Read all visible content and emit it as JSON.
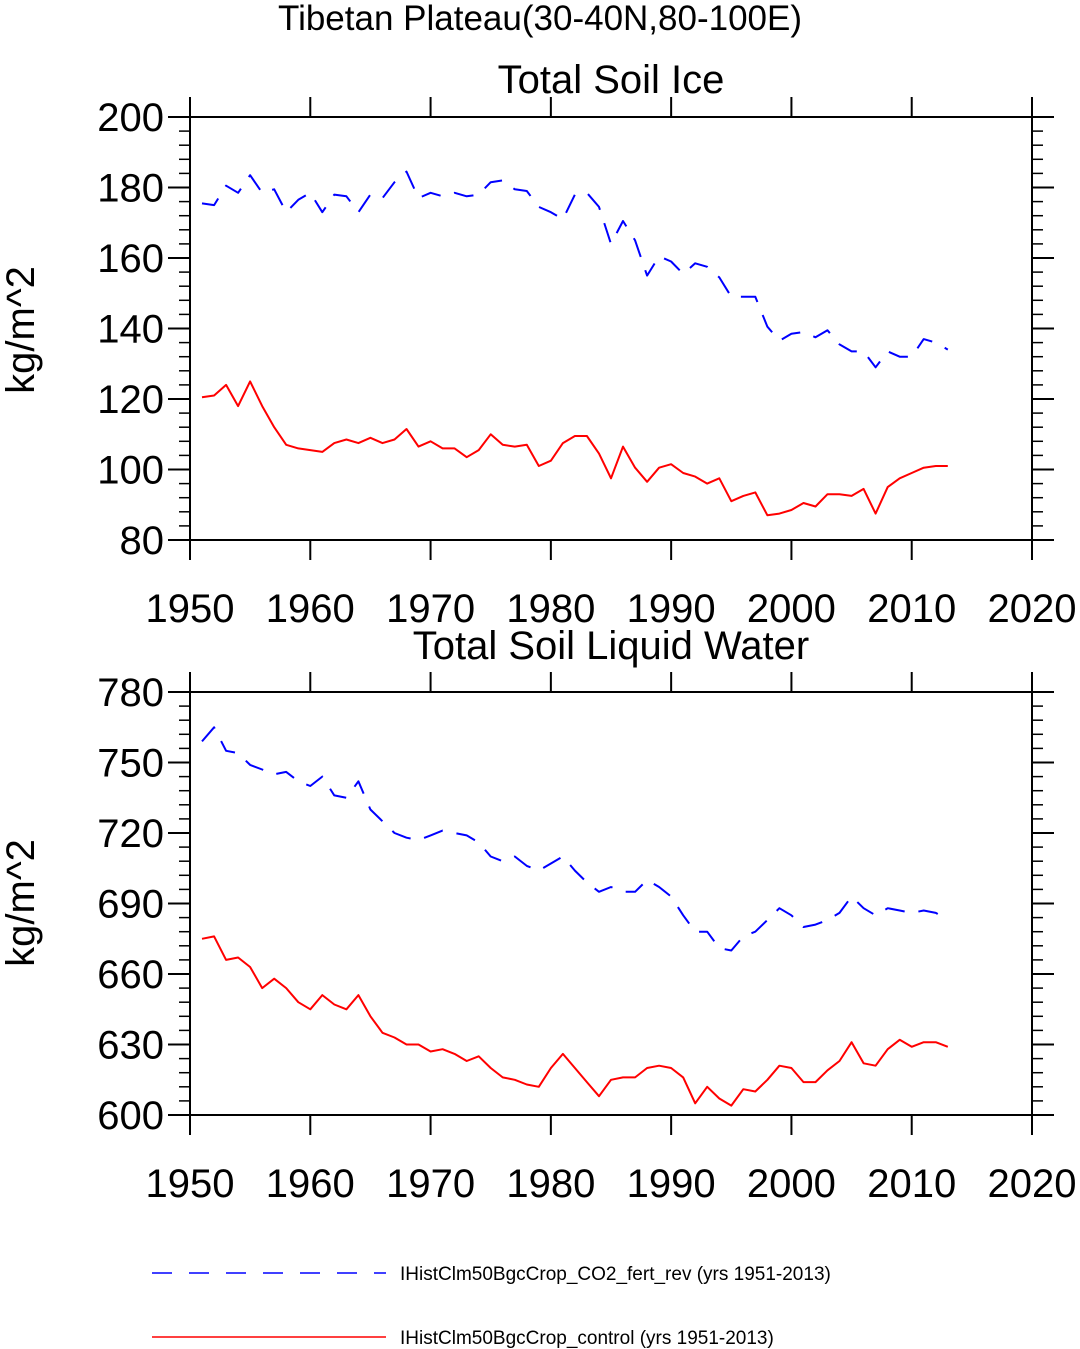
{
  "page_title": "Tibetan Plateau(30-40N,80-100E)",
  "legend": {
    "items": [
      {
        "label": "IHistClm50BgcCrop_CO2_fert_rev (yrs 1951-2013)",
        "color": "#0000ff",
        "style": "dashed"
      },
      {
        "label": "IHistClm50BgcCrop_control (yrs 1951-2013)",
        "color": "#ff0000",
        "style": "solid"
      }
    ]
  },
  "chart_data": [
    {
      "type": "line",
      "title": "Total Soil Ice",
      "ylabel": "kg/m^2",
      "xlabel": "",
      "xlim": [
        1950,
        2020
      ],
      "ylim": [
        80,
        200
      ],
      "xticks": [
        1950,
        1960,
        1970,
        1980,
        1990,
        2000,
        2010,
        2020
      ],
      "yticks": [
        80,
        100,
        120,
        140,
        160,
        180,
        200
      ],
      "x": [
        1951,
        1952,
        1953,
        1954,
        1955,
        1956,
        1957,
        1958,
        1959,
        1960,
        1961,
        1962,
        1963,
        1964,
        1965,
        1966,
        1967,
        1968,
        1969,
        1970,
        1971,
        1972,
        1973,
        1974,
        1975,
        1976,
        1977,
        1978,
        1979,
        1980,
        1981,
        1982,
        1983,
        1984,
        1985,
        1986,
        1987,
        1988,
        1989,
        1990,
        1991,
        1992,
        1993,
        1994,
        1995,
        1996,
        1997,
        1998,
        1999,
        2000,
        2001,
        2002,
        2003,
        2004,
        2005,
        2006,
        2007,
        2008,
        2009,
        2010,
        2011,
        2012,
        2013
      ],
      "series": [
        {
          "name": "IHistClm50BgcCrop_CO2_fert_rev (yrs 1951-2013)",
          "color": "#0000ff",
          "style": "dashed",
          "values": [
            175.5,
            175,
            180.5,
            178.5,
            183.5,
            178.5,
            179.5,
            173,
            176.5,
            178.5,
            173,
            178,
            177.5,
            173,
            178,
            177,
            181.5,
            184.5,
            177,
            178.5,
            177.5,
            178.5,
            177.5,
            178,
            181.5,
            182,
            179.5,
            179,
            174.5,
            173,
            171,
            178,
            178.5,
            174.5,
            164,
            170.5,
            165,
            155,
            160.5,
            159,
            155.5,
            158.5,
            157.5,
            154.5,
            149,
            149,
            149,
            140.5,
            136.5,
            138.5,
            139,
            137.5,
            139.5,
            135.5,
            133.5,
            133.5,
            129,
            133.5,
            132,
            132,
            137,
            136,
            134
          ]
        },
        {
          "name": "IHistClm50BgcCrop_control (yrs 1951-2013)",
          "color": "#ff0000",
          "style": "solid",
          "values": [
            120.5,
            121,
            124,
            118,
            125,
            118,
            112,
            107,
            106,
            105.5,
            105,
            107.5,
            108.5,
            107.5,
            109,
            107.5,
            108.5,
            111.5,
            106.5,
            108,
            106,
            106,
            103.5,
            105.5,
            110,
            107,
            106.5,
            107,
            101,
            102.5,
            107.5,
            109.5,
            109.5,
            104.5,
            97.5,
            106.5,
            100.5,
            96.5,
            100.5,
            101.5,
            99,
            98,
            96,
            97.5,
            91,
            92.5,
            93.5,
            87,
            87.5,
            88.5,
            90.5,
            89.5,
            93,
            93,
            92.5,
            94.5,
            87.5,
            95,
            97.5,
            99,
            100.5,
            101,
            101
          ]
        }
      ]
    },
    {
      "type": "line",
      "title": "Total Soil Liquid Water",
      "ylabel": "kg/m^2",
      "xlabel": "",
      "xlim": [
        1950,
        2020
      ],
      "ylim": [
        600,
        780
      ],
      "xticks": [
        1950,
        1960,
        1970,
        1980,
        1990,
        2000,
        2010,
        2020
      ],
      "yticks": [
        600,
        630,
        660,
        690,
        720,
        750,
        780
      ],
      "x": [
        1951,
        1952,
        1953,
        1954,
        1955,
        1956,
        1957,
        1958,
        1959,
        1960,
        1961,
        1962,
        1963,
        1964,
        1965,
        1966,
        1967,
        1968,
        1969,
        1970,
        1971,
        1972,
        1973,
        1974,
        1975,
        1976,
        1977,
        1978,
        1979,
        1980,
        1981,
        1982,
        1983,
        1984,
        1985,
        1986,
        1987,
        1988,
        1989,
        1990,
        1991,
        1992,
        1993,
        1994,
        1995,
        1996,
        1997,
        1998,
        1999,
        2000,
        2001,
        2002,
        2003,
        2004,
        2005,
        2006,
        2007,
        2008,
        2009,
        2010,
        2011,
        2012,
        2013
      ],
      "series": [
        {
          "name": "IHistClm50BgcCrop_CO2_fert_rev (yrs 1951-2013)",
          "color": "#0000ff",
          "style": "dashed",
          "values": [
            759,
            765,
            755,
            754,
            749,
            747,
            745,
            746,
            742,
            740,
            744,
            736,
            735,
            742,
            730,
            725,
            720,
            718,
            717,
            719,
            721,
            720,
            719,
            716,
            710,
            708,
            710,
            706,
            704,
            707,
            710,
            704,
            699,
            695,
            697,
            695,
            695,
            700,
            697,
            693,
            685,
            678,
            678,
            671,
            670,
            676,
            678,
            683,
            688,
            685,
            680,
            681,
            683,
            686,
            693,
            688,
            685,
            688,
            687,
            686,
            687,
            686,
            683
          ]
        },
        {
          "name": "IHistClm50BgcCrop_control (yrs 1951-2013)",
          "color": "#ff0000",
          "style": "solid",
          "values": [
            675,
            676,
            666,
            667,
            663,
            654,
            658,
            654,
            648,
            645,
            651,
            647,
            645,
            651,
            642,
            635,
            633,
            630,
            630,
            627,
            628,
            626,
            623,
            625,
            620,
            616,
            615,
            613,
            612,
            620,
            626,
            620,
            614,
            608,
            615,
            616,
            616,
            620,
            621,
            620,
            616,
            605,
            612,
            607,
            604,
            611,
            610,
            615,
            621,
            620,
            614,
            614,
            619,
            623,
            631,
            622,
            621,
            628,
            632,
            629,
            631,
            631,
            629
          ]
        }
      ]
    }
  ]
}
